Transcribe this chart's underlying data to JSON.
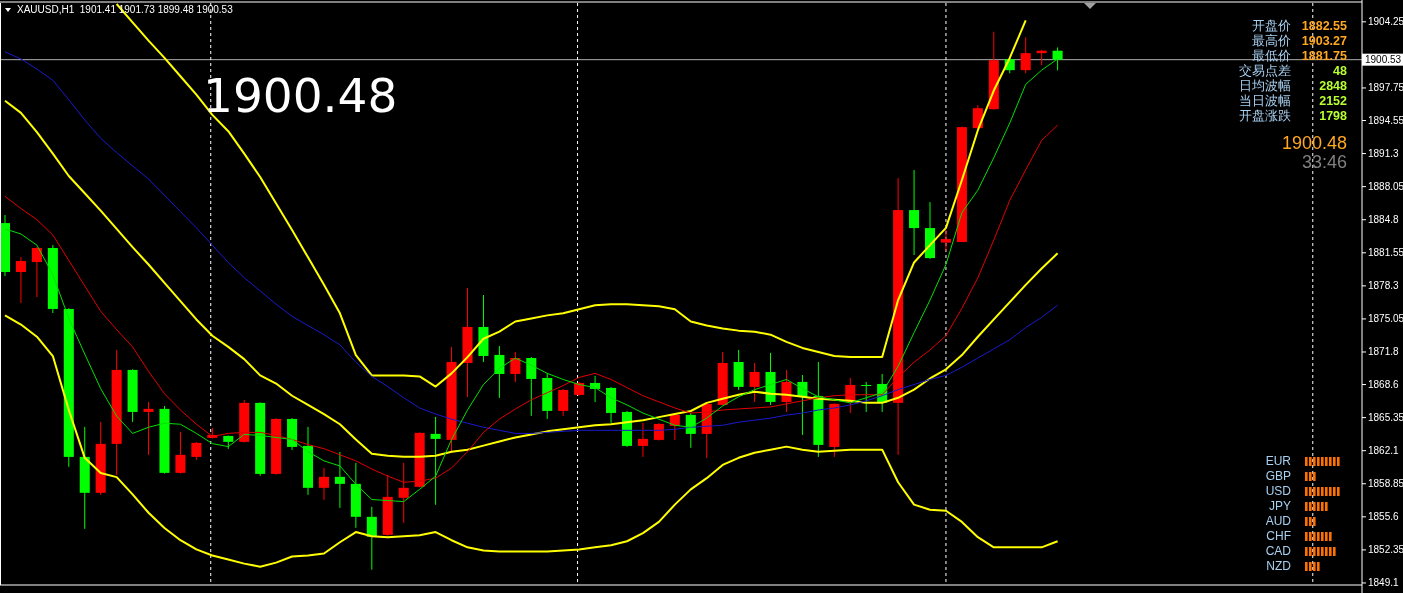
{
  "chart_data": {
    "type": "candlestick",
    "title": "XAUUSD,H1  1901.41 1901.73 1899.48 1900.53",
    "categories": [
      null,
      null,
      null,
      null,
      null,
      null,
      null,
      null,
      null,
      null,
      null,
      null,
      null,
      null,
      null,
      null,
      null,
      null,
      null,
      null,
      null,
      null,
      null,
      null,
      null,
      null,
      null,
      null,
      null,
      null,
      null,
      null,
      null,
      null,
      null,
      null,
      null,
      null,
      null,
      null,
      null,
      null,
      null,
      null,
      null,
      null,
      null,
      null,
      null,
      null,
      null,
      null,
      null,
      null,
      null,
      null,
      null,
      null,
      null,
      null,
      null,
      null,
      null,
      null,
      null,
      null,
      null
    ],
    "ohlc": [
      [
        1884.47,
        1885.26,
        1879.27,
        1879.66
      ],
      [
        1879.66,
        1881.13,
        1876.62,
        1880.74
      ],
      [
        1880.64,
        1882.11,
        1877.2,
        1882.02
      ],
      [
        1882.02,
        1882.31,
        1875.63,
        1876.03
      ],
      [
        1876.03,
        1876.1,
        1860.51,
        1861.49
      ],
      [
        1861.49,
        1864.44,
        1854.42,
        1857.96
      ],
      [
        1857.96,
        1864.93,
        1857.76,
        1862.77
      ],
      [
        1862.77,
        1872.0,
        1859.72,
        1870.04
      ],
      [
        1870.04,
        1870.1,
        1864.93,
        1865.91
      ],
      [
        1865.91,
        1866.89,
        1861.69,
        1866.21
      ],
      [
        1866.21,
        1866.5,
        1859.85,
        1859.92
      ],
      [
        1859.92,
        1863.95,
        1859.85,
        1861.69
      ],
      [
        1861.49,
        1862.95,
        1861.2,
        1862.87
      ],
      [
        1863.36,
        1864.34,
        1863.3,
        1863.65
      ],
      [
        1863.55,
        1863.6,
        1862.28,
        1862.97
      ],
      [
        1862.97,
        1867.09,
        1862.9,
        1866.8
      ],
      [
        1866.8,
        1866.85,
        1859.63,
        1859.82
      ],
      [
        1859.82,
        1865.3,
        1859.75,
        1865.22
      ],
      [
        1865.22,
        1865.3,
        1862.18,
        1862.47
      ],
      [
        1862.57,
        1864.44,
        1857.76,
        1858.45
      ],
      [
        1858.45,
        1860.41,
        1857.27,
        1859.53
      ],
      [
        1859.53,
        1861.98,
        1856.48,
        1858.84
      ],
      [
        1858.84,
        1860.9,
        1854.52,
        1855.6
      ],
      [
        1855.6,
        1856.58,
        1850.4,
        1853.64
      ],
      [
        1853.83,
        1859.72,
        1853.75,
        1857.56
      ],
      [
        1857.47,
        1860.9,
        1855.01,
        1858.45
      ],
      [
        1858.55,
        1863.9,
        1858.5,
        1863.85
      ],
      [
        1863.75,
        1865.42,
        1856.78,
        1863.26
      ],
      [
        1863.16,
        1872.29,
        1861.89,
        1870.82
      ],
      [
        1870.72,
        1878.09,
        1867.38,
        1874.26
      ],
      [
        1874.26,
        1877.4,
        1870.82,
        1871.41
      ],
      [
        1871.51,
        1872.39,
        1867.29,
        1869.64
      ],
      [
        1869.64,
        1871.8,
        1868.86,
        1871.21
      ],
      [
        1871.21,
        1871.3,
        1865.52,
        1869.15
      ],
      [
        1869.25,
        1869.74,
        1865.22,
        1866.01
      ],
      [
        1866.01,
        1868.15,
        1865.52,
        1868.07
      ],
      [
        1867.58,
        1868.85,
        1867.5,
        1868.76
      ],
      [
        1868.76,
        1869.45,
        1866.89,
        1868.17
      ],
      [
        1868.27,
        1868.35,
        1864.83,
        1865.81
      ],
      [
        1865.91,
        1866.0,
        1862.47,
        1862.57
      ],
      [
        1862.57,
        1864.83,
        1861.49,
        1863.26
      ],
      [
        1863.16,
        1864.8,
        1863.1,
        1864.73
      ],
      [
        1864.54,
        1865.7,
        1863.16,
        1865.62
      ],
      [
        1865.62,
        1865.81,
        1862.38,
        1863.75
      ],
      [
        1863.75,
        1866.75,
        1861.39,
        1866.7
      ],
      [
        1866.6,
        1871.8,
        1866.55,
        1870.72
      ],
      [
        1870.82,
        1872.0,
        1868.07,
        1868.37
      ],
      [
        1868.37,
        1870.72,
        1866.89,
        1869.84
      ],
      [
        1869.84,
        1871.71,
        1866.6,
        1866.89
      ],
      [
        1866.89,
        1870.04,
        1865.91,
        1868.86
      ],
      [
        1868.86,
        1869.54,
        1863.65,
        1867.38
      ],
      [
        1867.48,
        1870.82,
        1861.49,
        1862.67
      ],
      [
        1862.47,
        1866.75,
        1861.49,
        1866.7
      ],
      [
        1866.89,
        1869.25,
        1865.81,
        1868.56
      ],
      [
        1868.56,
        1868.86,
        1865.91,
        1868.46
      ],
      [
        1868.66,
        1869.64,
        1865.91,
        1866.8
      ],
      [
        1866.8,
        1888.89,
        1861.69,
        1885.75
      ],
      [
        1885.75,
        1889.68,
        1881.33,
        1883.98
      ],
      [
        1883.98,
        1886.53,
        1880.95,
        1881.03
      ],
      [
        1882.55,
        1883.78,
        1881.75,
        1882.9
      ],
      [
        1882.61,
        1893.95,
        1882.61,
        1893.9
      ],
      [
        1893.8,
        1896.06,
        1893.75,
        1895.76
      ],
      [
        1895.67,
        1903.27,
        1895.6,
        1900.48
      ],
      [
        1900.58,
        1900.65,
        1899.2,
        1899.5
      ],
      [
        1899.5,
        1902.74,
        1899.2,
        1901.17
      ],
      [
        1901.17,
        1901.5,
        1899.99,
        1901.41
      ],
      [
        1901.41,
        1901.73,
        1899.48,
        1900.53
      ]
    ],
    "colors": [
      "#00ff00",
      "#ff0000",
      "#ff0000",
      "#00ff00",
      "#00ff00",
      "#00ff00",
      "#ff0000",
      "#ff0000",
      "#00ff00",
      "#ff0000",
      "#00ff00",
      "#ff0000",
      "#ff0000",
      "#ff0000",
      "#00ff00",
      "#ff0000",
      "#00ff00",
      "#ff0000",
      "#00ff00",
      "#00ff00",
      "#ff0000",
      "#00ff00",
      "#00ff00",
      "#00ff00",
      "#ff0000",
      "#ff0000",
      "#ff0000",
      "#00ff00",
      "#ff0000",
      "#ff0000",
      "#00ff00",
      "#00ff00",
      "#ff0000",
      "#00ff00",
      "#00ff00",
      "#ff0000",
      "#ff0000",
      "#00ff00",
      "#00ff00",
      "#00ff00",
      "#ff0000",
      "#ff0000",
      "#ff0000",
      "#00ff00",
      "#ff0000",
      "#ff0000",
      "#00ff00",
      "#ff0000",
      "#00ff00",
      "#ff0000",
      "#00ff00",
      "#00ff00",
      "#ff0000",
      "#ff0000",
      "#00ff00",
      "#00ff00",
      "#ff0000",
      "#00ff00",
      "#00ff00",
      "#ff0000",
      "#ff0000",
      "#ff0000",
      "#ff0000",
      "#00ff00",
      "#ff0000",
      "#ff0000",
      "#00ff00"
    ],
    "series": [
      {
        "type": "line",
        "color": "#ffff00",
        "values": [
          null,
          null,
          null,
          null,
          null,
          null,
          null,
          1906.0,
          1904.2,
          1902.4,
          1900.7,
          1898.9,
          1897.1,
          1895.1,
          1893.5,
          1891.3,
          1889.0,
          1886.4,
          1883.8,
          1881.1,
          1878.4,
          1875.6,
          1871.5,
          1869.5,
          1869.5,
          1869.5,
          1869.4,
          1868.4,
          1869.7,
          1871.3,
          1873.1,
          1873.8,
          1874.8,
          1875.1,
          1875.4,
          1875.6,
          1876.0,
          1876.4,
          1876.5,
          1876.5,
          1876.4,
          1876.3,
          1876.0,
          1874.8,
          1874.4,
          1874.1,
          1873.9,
          1873.8,
          1873.5,
          1872.8,
          1872.2,
          1871.8,
          1871.4,
          1871.3,
          1871.3,
          1871.3,
          1876.9,
          1880.6,
          1882.3,
          1884.0,
          1888.7,
          1893.6,
          1897.5,
          1900.7,
          1904.4,
          null,
          null
        ]
      },
      {
        "type": "line",
        "color": "#ffff00",
        "values": [
          1896.5,
          1895.3,
          1893.4,
          1891.3,
          1889.1,
          1887.4,
          1885.7,
          1883.9,
          1882.1,
          1880.4,
          1878.6,
          1876.8,
          1875.0,
          1873.4,
          1872.3,
          1871.1,
          1869.5,
          1868.7,
          1867.5,
          1866.6,
          1865.7,
          1864.7,
          1863.2,
          1861.8,
          1861.6,
          1861.5,
          1861.5,
          1861.6,
          1862.0,
          1862.2,
          1862.6,
          1863.0,
          1863.4,
          1863.7,
          1864.0,
          1864.2,
          1864.4,
          1864.6,
          1864.7,
          1864.9,
          1865.1,
          1865.4,
          1865.7,
          1866.0,
          1866.8,
          1867.2,
          1867.6,
          1867.9,
          1867.7,
          1867.6,
          1867.4,
          1867.2,
          1867.1,
          1867.0,
          1866.8,
          1866.8,
          1867.3,
          1868.1,
          1869.2,
          1870.1,
          1871.5,
          1873.3,
          1875.0,
          1876.7,
          1878.4,
          1880.0,
          1881.5
        ]
      },
      {
        "type": "line",
        "color": "#ffff00",
        "values": [
          1875.4,
          1874.5,
          1873.3,
          1871.4,
          1866.1,
          1861.4,
          1859.9,
          1859.5,
          1857.8,
          1856.0,
          1854.5,
          1853.3,
          1852.4,
          1851.8,
          1851.4,
          1851.0,
          1850.7,
          1851.1,
          1851.7,
          1851.8,
          1852.0,
          1853.1,
          1854.1,
          1853.7,
          1853.6,
          1853.7,
          1853.8,
          1854.1,
          1853.3,
          1852.6,
          1852.3,
          1852.2,
          1852.2,
          1852.2,
          1852.2,
          1852.3,
          1852.4,
          1852.6,
          1852.8,
          1853.2,
          1854.0,
          1855.1,
          1856.8,
          1858.3,
          1859.4,
          1860.7,
          1861.4,
          1861.9,
          1862.2,
          1862.5,
          1862.2,
          1862.0,
          1862.1,
          1862.2,
          1862.2,
          1862.2,
          1859.0,
          1856.8,
          1856.3,
          1856.2,
          1855.1,
          1853.6,
          1852.6,
          1852.6,
          1852.6,
          1852.6,
          1853.2
        ]
      },
      {
        "type": "line",
        "color": "#1a1acd",
        "values": [
          1901.3,
          1900.6,
          1899.6,
          1898.5,
          1896.6,
          1894.6,
          1892.8,
          1891.4,
          1890.1,
          1888.8,
          1887.2,
          1885.6,
          1884.0,
          1882.3,
          1880.6,
          1879.1,
          1877.8,
          1876.5,
          1875.3,
          1874.4,
          1873.5,
          1872.5,
          1870.8,
          1869.4,
          1868.4,
          1867.3,
          1866.3,
          1865.7,
          1865.2,
          1864.8,
          1864.4,
          1864.1,
          1863.8,
          1863.8,
          1863.9,
          1864.0,
          1864.1,
          1864.1,
          1864.1,
          1864.1,
          1864.1,
          1864.1,
          1864.2,
          1864.4,
          1864.5,
          1864.6,
          1864.9,
          1865.1,
          1865.3,
          1865.6,
          1865.8,
          1866.1,
          1866.3,
          1866.6,
          1867.0,
          1867.5,
          1868.1,
          1868.6,
          1869.1,
          1869.5,
          1870.3,
          1871.2,
          1872.1,
          1873.0,
          1874.2,
          1875.2,
          1876.4
        ]
      },
      {
        "type": "line",
        "color": "#e00000",
        "values": [
          1887.1,
          1885.9,
          1884.8,
          1883.3,
          1880.8,
          1878.3,
          1875.8,
          1874.0,
          1872.3,
          1869.9,
          1867.7,
          1866.1,
          1864.7,
          1863.5,
          1863.8,
          1863.9,
          1863.9,
          1863.6,
          1863.2,
          1862.7,
          1862.3,
          1861.7,
          1861.1,
          1860.3,
          1859.6,
          1859.0,
          1859.1,
          1859.4,
          1860.4,
          1862.0,
          1863.9,
          1865.2,
          1866.2,
          1867.1,
          1867.8,
          1868.5,
          1869.3,
          1869.7,
          1869.1,
          1868.3,
          1867.5,
          1866.9,
          1866.3,
          1865.8,
          1865.9,
          1866.1,
          1866.2,
          1866.3,
          1866.4,
          1866.7,
          1867.0,
          1867.3,
          1867.5,
          1867.6,
          1867.6,
          1867.6,
          1869.3,
          1870.8,
          1872.0,
          1873.4,
          1876.1,
          1879.1,
          1882.8,
          1886.7,
          1889.7,
          1892.6,
          1894.1
        ]
      },
      {
        "type": "line",
        "color": "#00e000",
        "values": [
          1883.9,
          1883.4,
          1882.3,
          1879.4,
          1875.1,
          1871.6,
          1868.2,
          1865.5,
          1863.8,
          1864.4,
          1864.8,
          1864.7,
          1863.8,
          1862.8,
          1862.5,
          1863.7,
          1863.6,
          1863.4,
          1863.2,
          1862.0,
          1861.1,
          1860.6,
          1858.8,
          1857.3,
          1857.2,
          1857.1,
          1858.3,
          1859.6,
          1863.2,
          1866.1,
          1868.6,
          1870.2,
          1871.2,
          1870.5,
          1869.7,
          1869.1,
          1868.6,
          1868.3,
          1867.3,
          1866.6,
          1865.8,
          1865.2,
          1864.6,
          1864.4,
          1865.3,
          1866.5,
          1867.4,
          1868.1,
          1868.6,
          1869.1,
          1868.2,
          1867.4,
          1867.1,
          1866.8,
          1867.3,
          1867.8,
          1870.4,
          1873.7,
          1876.9,
          1880.4,
          1885.5,
          1887.7,
          1890.9,
          1894.3,
          1898.1,
          1899.5,
          1900.6
        ]
      }
    ],
    "ylim": [
      1848.9,
      1906.1
    ],
    "yticks": [
      1904.25,
      1897.75,
      1894.55,
      1891.3,
      1888.05,
      1884.8,
      1881.55,
      1878.3,
      1875.05,
      1871.8,
      1868.6,
      1865.35,
      1862.1,
      1858.85,
      1855.6,
      1852.35,
      1849.1
    ],
    "tick_labels": "y",
    "grid": "x",
    "ref_lines": [
      {
        "axis": "y",
        "value": 1900.53,
        "label": "1900.53",
        "color": "#b0b0b0",
        "line_style": "solid"
      }
    ],
    "annotations": [
      "1900.48",
      "开盘价",
      "最高价",
      "最低价",
      "交易点差",
      "日均波幅",
      "当日波幅",
      "开盘涨跌",
      "1882.55",
      "1903.27",
      "1881.75",
      "48",
      "2848",
      "2152",
      "1798",
      "1900.48",
      "33:46",
      "EUR",
      "GBP",
      "USD",
      "JPY",
      "AUD",
      "CHF",
      "CAD",
      "NZD"
    ]
  }
}
